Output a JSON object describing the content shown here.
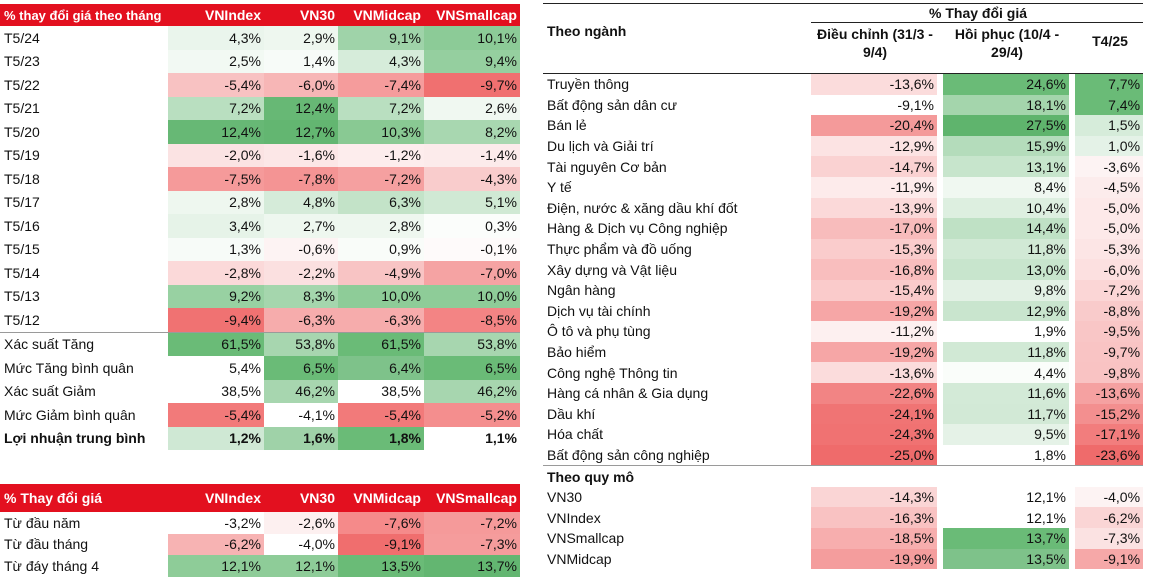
{
  "monthly_table": {
    "headers": [
      "% thay đổi giá theo tháng",
      "VNIndex",
      "VN30",
      "VNMidcap",
      "VNSmallcap"
    ],
    "rows": [
      {
        "label": "T5/24",
        "values": [
          "4,3%",
          "2,9%",
          "9,1%",
          "10,1%"
        ],
        "colors": [
          "#eaf5ec",
          "#eef7ef",
          "#9fd3a9",
          "#8ccb97"
        ]
      },
      {
        "label": "T5/23",
        "values": [
          "2,5%",
          "1,4%",
          "4,3%",
          "9,4%"
        ],
        "colors": [
          "#f2f9f3",
          "#f7fbf8",
          "#d6ecda",
          "#95cf9f"
        ]
      },
      {
        "label": "T5/22",
        "values": [
          "-5,4%",
          "-6,0%",
          "-7,4%",
          "-9,7%"
        ],
        "colors": [
          "#f8c2c2",
          "#f7b6b6",
          "#f59c9c",
          "#f07070"
        ]
      },
      {
        "label": "T5/21",
        "values": [
          "7,2%",
          "12,4%",
          "7,2%",
          "2,6%"
        ],
        "colors": [
          "#b9dfc0",
          "#67b875",
          "#b9dfc0",
          "#f0f8f1"
        ]
      },
      {
        "label": "T5/20",
        "values": [
          "12,4%",
          "12,7%",
          "10,3%",
          "8,2%"
        ],
        "colors": [
          "#67b875",
          "#63b671",
          "#89c993",
          "#a8d7b0"
        ]
      },
      {
        "label": "T5/19",
        "values": [
          "-2,0%",
          "-1,6%",
          "-1,2%",
          "-1,4%"
        ],
        "colors": [
          "#fbe3e3",
          "#fce7e7",
          "#fdeded",
          "#fcebeb"
        ]
      },
      {
        "label": "T5/18",
        "values": [
          "-7,5%",
          "-7,8%",
          "-7,2%",
          "-4,3%"
        ],
        "colors": [
          "#f59a9a",
          "#f49494",
          "#f5a0a0",
          "#f9cccc"
        ]
      },
      {
        "label": "T5/17",
        "values": [
          "2,8%",
          "4,8%",
          "6,3%",
          "5,1%"
        ],
        "colors": [
          "#eef7ef",
          "#d5ebd9",
          "#c3e3c8",
          "#d0e9d4"
        ]
      },
      {
        "label": "T5/16",
        "values": [
          "3,4%",
          "2,7%",
          "2,8%",
          "0,3%"
        ],
        "colors": [
          "#e6f3e8",
          "#eef7ef",
          "#eef7ef",
          "#fbfdfb"
        ]
      },
      {
        "label": "T5/15",
        "values": [
          "1,3%",
          "-0,6%",
          "0,9%",
          "-0,1%"
        ],
        "colors": [
          "#f7fbf8",
          "#fdf3f3",
          "#f9fcf9",
          "#fefafa"
        ]
      },
      {
        "label": "T5/14",
        "values": [
          "-2,8%",
          "-2,2%",
          "-4,9%",
          "-7,0%"
        ],
        "colors": [
          "#fbd9d9",
          "#fbe0e0",
          "#f8c4c4",
          "#f5a3a3"
        ]
      },
      {
        "label": "T5/13",
        "values": [
          "9,2%",
          "8,3%",
          "10,0%",
          "10,0%"
        ],
        "colors": [
          "#98d1a2",
          "#a5d6ad",
          "#8ecc98",
          "#8ecc98"
        ]
      },
      {
        "label": "T5/12",
        "values": [
          "-9,4%",
          "-6,3%",
          "-6,3%",
          "-8,5%"
        ],
        "colors": [
          "#f07272",
          "#f6acac",
          "#f6acac",
          "#f38484"
        ]
      }
    ],
    "stats": [
      {
        "label": "Xác suất Tăng",
        "values": [
          "61,5%",
          "53,8%",
          "61,5%",
          "53,8%"
        ],
        "colors": [
          "#6abb77",
          "#a7d6af",
          "#6abb77",
          "#a7d6af"
        ],
        "bold": false
      },
      {
        "label": "Mức Tăng bình quân",
        "values": [
          "5,4%",
          "6,5%",
          "6,4%",
          "6,5%"
        ],
        "colors": [
          "#ffffff",
          "#6abb77",
          "#7ec28a",
          "#6abb77"
        ],
        "bold": false
      },
      {
        "label": "Xác suất Giảm",
        "values": [
          "38,5%",
          "46,2%",
          "38,5%",
          "46,2%"
        ],
        "colors": [
          "#ffffff",
          "#a7d6af",
          "#ffffff",
          "#a7d6af"
        ],
        "bold": false
      },
      {
        "label": "Mức Giảm bình quân",
        "values": [
          "-5,4%",
          "-4,1%",
          "-5,4%",
          "-5,2%"
        ],
        "colors": [
          "#f27a7a",
          "#ffffff",
          "#f27a7a",
          "#f48e8e"
        ],
        "bold": false
      },
      {
        "label": "Lợi nhuận trung bình",
        "values": [
          "1,2%",
          "1,6%",
          "1,8%",
          "1,1%"
        ],
        "colors": [
          "#cfe8d4",
          "#9fd2a8",
          "#6abb77",
          "#ffffff"
        ],
        "bold": true
      }
    ]
  },
  "ytd_table": {
    "headers": [
      "% Thay đổi giá",
      "VNIndex",
      "VN30",
      "VNMidcap",
      "VNSmallcap"
    ],
    "rows": [
      {
        "label": "Từ đầu năm",
        "values": [
          "-3,2%",
          "-2,6%",
          "-7,6%",
          "-7,2%"
        ],
        "colors": [
          "#ffffff",
          "#fdf0f0",
          "#f58a8a",
          "#f59a9a"
        ]
      },
      {
        "label": "Từ đầu tháng",
        "values": [
          "-6,2%",
          "-4,0%",
          "-9,1%",
          "-7,3%"
        ],
        "colors": [
          "#f7b3b3",
          "#ffffff",
          "#f06e6e",
          "#f59c9c"
        ]
      },
      {
        "label": "Từ đáy tháng 4",
        "values": [
          "12,1%",
          "12,1%",
          "13,5%",
          "13,7%"
        ],
        "colors": [
          "#8ecc98",
          "#8ecc98",
          "#6abb77",
          "#63b671"
        ]
      }
    ]
  },
  "sector_table": {
    "group_header": "% Thay đổi giá",
    "col_label": "Theo ngành",
    "col_heads": [
      "Điều chỉnh (31/3 - 9/4)",
      "Hồi phục (10/4 - 29/4)",
      "T4/25"
    ],
    "sectors": [
      {
        "label": "Truyền thông",
        "values": [
          "-13,6%",
          "24,6%",
          "7,7%"
        ],
        "colors": [
          "#fbdcdc",
          "#6abb77",
          "#6abb77"
        ]
      },
      {
        "label": "Bất động sản dân cư",
        "values": [
          "-9,1%",
          "18,1%",
          "7,4%"
        ],
        "colors": [
          "#ffffff",
          "#a4d5ac",
          "#6abb77"
        ]
      },
      {
        "label": "Bán lẻ",
        "values": [
          "-20,4%",
          "27,5%",
          "1,5%"
        ],
        "colors": [
          "#f49a9a",
          "#5fb46d",
          "#d6ecda"
        ]
      },
      {
        "label": "Du lịch và Giải trí",
        "values": [
          "-12,9%",
          "15,9%",
          "1,0%"
        ],
        "colors": [
          "#fce3e3",
          "#b4dcbb",
          "#e4f2e7"
        ]
      },
      {
        "label": "Tài nguyên Cơ bản",
        "values": [
          "-14,7%",
          "13,1%",
          "-3,6%"
        ],
        "colors": [
          "#fad2d2",
          "#c7e5cc",
          "#fdf3f3"
        ]
      },
      {
        "label": "Y tế",
        "values": [
          "-11,9%",
          "8,4%",
          "-4,5%"
        ],
        "colors": [
          "#fdebeb",
          "#f0f8f1",
          "#fcecec"
        ]
      },
      {
        "label": "Điện, nước & xăng dầu khí đốt",
        "values": [
          "-13,9%",
          "10,4%",
          "-5,0%"
        ],
        "colors": [
          "#fbd9d9",
          "#ddefe0",
          "#fde9e9"
        ]
      },
      {
        "label": "Hàng & Dịch vụ Công nghiệp",
        "values": [
          "-17,0%",
          "14,4%",
          "-5,0%"
        ],
        "colors": [
          "#f8bcbc",
          "#bfe1c5",
          "#fde9e9"
        ]
      },
      {
        "label": "Thực phẩm và đồ uống",
        "values": [
          "-15,3%",
          "11,8%",
          "-5,3%"
        ],
        "colors": [
          "#facccc",
          "#d1e9d5",
          "#fce5e5"
        ]
      },
      {
        "label": "Xây dựng và Vật liệu",
        "values": [
          "-16,8%",
          "13,0%",
          "-6,0%"
        ],
        "colors": [
          "#f9bebe",
          "#c8e5cd",
          "#fce0e0"
        ]
      },
      {
        "label": "Ngân hàng",
        "values": [
          "-15,4%",
          "9,8%",
          "-7,2%"
        ],
        "colors": [
          "#facbcb",
          "#e3f1e5",
          "#fbd6d6"
        ]
      },
      {
        "label": "Dịch vụ tài chính",
        "values": [
          "-19,2%",
          "12,9%",
          "-8,8%"
        ],
        "colors": [
          "#f6a6a6",
          "#c9e5ce",
          "#f9cbcb"
        ]
      },
      {
        "label": "Ô tô và phụ tùng",
        "values": [
          "-11,2%",
          "1,9%",
          "-9,5%"
        ],
        "colors": [
          "#fdf0f0",
          "#ffffff",
          "#f9c6c6"
        ]
      },
      {
        "label": "Bảo hiểm",
        "values": [
          "-19,2%",
          "11,8%",
          "-9,7%"
        ],
        "colors": [
          "#f6a6a6",
          "#d1e9d5",
          "#f9c4c4"
        ]
      },
      {
        "label": "Công nghệ Thông tin",
        "values": [
          "-13,6%",
          "4,4%",
          "-9,8%"
        ],
        "colors": [
          "#fbdcdc",
          "#fafdfa",
          "#f9c3c3"
        ]
      },
      {
        "label": "Hàng cá nhân & Gia dụng",
        "values": [
          "-22,6%",
          "11,6%",
          "-13,6%"
        ],
        "colors": [
          "#f28484",
          "#d3ead7",
          "#f5a1a1"
        ]
      },
      {
        "label": "Dầu khí",
        "values": [
          "-24,1%",
          "11,7%",
          "-15,2%"
        ],
        "colors": [
          "#f07474",
          "#d2e9d6",
          "#f38f8f"
        ]
      },
      {
        "label": "Hóa chất",
        "values": [
          "-24,3%",
          "9,5%",
          "-17,1%"
        ],
        "colors": [
          "#f07272",
          "#e5f2e7",
          "#f27d7d"
        ]
      },
      {
        "label": "Bất động sản công nghiệp",
        "values": [
          "-25,0%",
          "1,8%",
          "-23,6%"
        ],
        "colors": [
          "#ef6b6b",
          "#ffffff",
          "#ef6b6b"
        ]
      }
    ],
    "size_label": "Theo quy mô",
    "size_rows": [
      {
        "label": "VN30",
        "values": [
          "-14,3%",
          "12,1%",
          "-4,0%"
        ],
        "colors": [
          "#fad5d5",
          "#ffffff",
          "#fdf3f3"
        ]
      },
      {
        "label": "VNIndex",
        "values": [
          "-16,3%",
          "12,1%",
          "-6,2%"
        ],
        "colors": [
          "#f9c2c2",
          "#ffffff",
          "#fad5d5"
        ]
      },
      {
        "label": "VNSmallcap",
        "values": [
          "-18,5%",
          "13,7%",
          "-7,3%"
        ],
        "colors": [
          "#f7aeae",
          "#6abb77",
          "#fbe2e2"
        ]
      },
      {
        "label": "VNMidcap",
        "values": [
          "-19,9%",
          "13,5%",
          "-9,1%"
        ],
        "colors": [
          "#f49d9d",
          "#7ec28a",
          "#f6a8a8"
        ]
      }
    ]
  }
}
